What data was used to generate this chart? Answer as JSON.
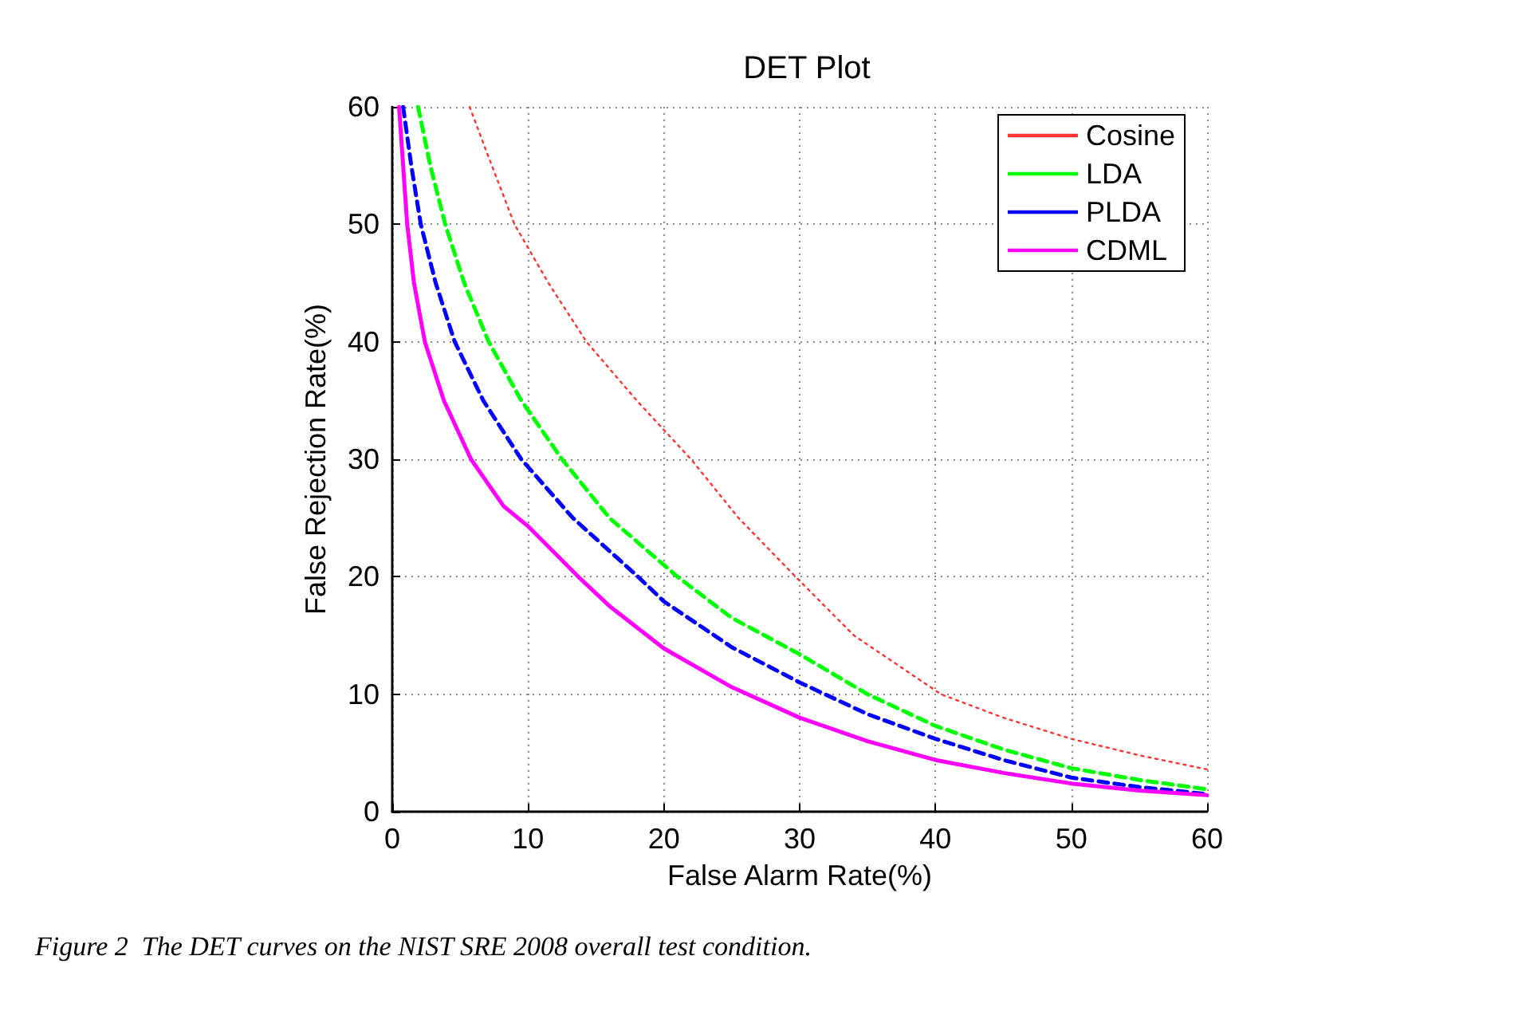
{
  "chart_data": {
    "type": "line",
    "title": "DET Plot",
    "xlabel": "False Alarm Rate(%)",
    "ylabel": "False Rejection Rate(%)",
    "annotations": [
      "Figure 2  The DET curves on the NIST SRE 2008 overall test condition."
    ],
    "xlim": [
      0,
      60
    ],
    "ylim": [
      0,
      60
    ],
    "xticks": [
      0,
      10,
      20,
      30,
      40,
      50,
      60
    ],
    "yticks": [
      0,
      10,
      20,
      30,
      40,
      50,
      60
    ],
    "grid": true,
    "legend": "top right",
    "marker": "none",
    "series": [
      {
        "name": "Cosine",
        "color": "#ff3333",
        "line_style": "dotted",
        "x": [
          5.7,
          7,
          9,
          11.5,
          14.3,
          18,
          22,
          25.5,
          29.7,
          34,
          40.4,
          45,
          50,
          55,
          60
        ],
        "values": [
          60,
          56,
          50,
          45,
          40,
          35,
          30,
          25,
          20,
          15,
          10,
          8,
          6.2,
          4.8,
          3.6
        ]
      },
      {
        "name": "LDA",
        "color": "#00ff00",
        "line_style": "dashed",
        "x": [
          1.9,
          2.8,
          3.9,
          5.3,
          7.1,
          9.5,
          12.5,
          16,
          21,
          25,
          30,
          35,
          40,
          45,
          50,
          55,
          60
        ],
        "values": [
          60,
          55,
          50,
          45,
          40,
          35,
          30,
          25,
          20,
          16.5,
          13.4,
          10,
          7.3,
          5.3,
          3.7,
          2.7,
          1.9
        ]
      },
      {
        "name": "PLDA",
        "color": "#0000ff",
        "line_style": "dashed",
        "x": [
          0.8,
          1.4,
          2.1,
          3.2,
          4.6,
          6.7,
          9.5,
          13.3,
          18.1,
          20,
          25,
          30,
          35,
          40,
          45,
          50,
          55,
          60
        ],
        "values": [
          60,
          55,
          50,
          45,
          40,
          35,
          30,
          25,
          20,
          17.9,
          14,
          11,
          8.3,
          6.2,
          4.4,
          2.9,
          2.1,
          1.5
        ]
      },
      {
        "name": "CDML",
        "color": "#ff00ff",
        "line_style": "solid",
        "x": [
          0.5,
          0.8,
          1.1,
          1.6,
          2.4,
          3.8,
          5.8,
          8.2,
          10,
          13.7,
          16,
          20,
          25,
          30,
          35,
          40,
          45,
          50,
          55,
          60
        ],
        "values": [
          60,
          55,
          50,
          45,
          40,
          35,
          30,
          26,
          24.3,
          20,
          17.5,
          13.9,
          10.6,
          8,
          6,
          4.4,
          3.3,
          2.4,
          1.8,
          1.4
        ]
      }
    ]
  }
}
